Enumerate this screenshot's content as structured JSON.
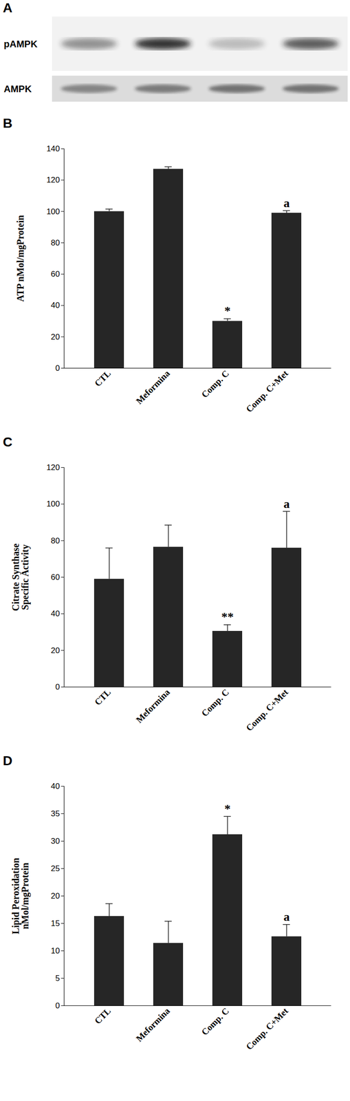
{
  "blot": {
    "panel": "A",
    "rows": [
      "pAMPK",
      "AMPK"
    ]
  },
  "chart_data": [
    {
      "type": "bar",
      "panel": "B",
      "categories": [
        "CTL",
        "Meformina",
        "Comp. C",
        "Comp. C+Met"
      ],
      "values": [
        100,
        127,
        30,
        99
      ],
      "errors": [
        1.5,
        1.5,
        1.5,
        1.5
      ],
      "annotations": [
        null,
        null,
        "*",
        "a"
      ],
      "ylabel": [
        "ATP nMol/mgProtein"
      ],
      "ylim": [
        0,
        140
      ],
      "yticks": [
        0,
        20,
        40,
        60,
        80,
        100,
        120,
        140
      ],
      "color": "#262626"
    },
    {
      "type": "bar",
      "panel": "C",
      "categories": [
        "CTL",
        "Meformina",
        "Comp. C",
        "Comp. C+Met"
      ],
      "values": [
        59,
        76.5,
        30.5,
        76
      ],
      "errors": [
        17,
        12,
        3.5,
        20
      ],
      "annotations": [
        null,
        null,
        "**",
        "a"
      ],
      "ylabel": [
        "Citrate Synthase",
        "Specific Activity"
      ],
      "ylim": [
        0,
        120
      ],
      "yticks": [
        0,
        20,
        40,
        60,
        80,
        100,
        120
      ],
      "color": "#262626"
    },
    {
      "type": "bar",
      "panel": "D",
      "categories": [
        "CTL",
        "Meformina",
        "Comp. C",
        "Comp. C+Met"
      ],
      "values": [
        16.3,
        11.4,
        31.2,
        12.6
      ],
      "errors": [
        2.3,
        4,
        3.3,
        2.2
      ],
      "annotations": [
        null,
        null,
        "*",
        "a"
      ],
      "ylabel": [
        "Lipid Peroxidation",
        "nMol/mgProtein"
      ],
      "ylim": [
        0,
        40
      ],
      "yticks": [
        0,
        5,
        10,
        15,
        20,
        25,
        30,
        35,
        40
      ],
      "color": "#262626"
    }
  ]
}
